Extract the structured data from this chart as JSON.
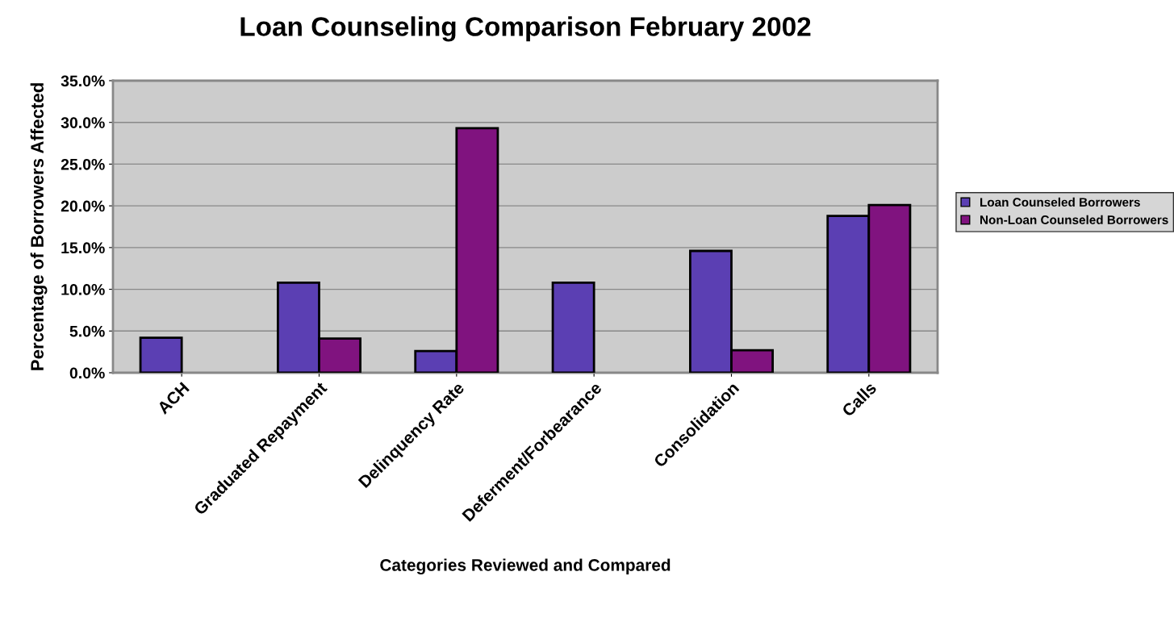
{
  "chart_data": {
    "type": "bar",
    "title": "Loan Counseling Comparison February 2002",
    "xlabel": "Categories Reviewed and Compared",
    "ylabel": "Percentage of Borrowers Affected",
    "categories": [
      "ACH",
      "Graduated Repayment",
      "Delinquency Rate",
      "Deferment/Forbearance",
      "Consolidation",
      "Calls"
    ],
    "series": [
      {
        "name": "Loan Counseled Borrowers",
        "color": "#5b3fb3",
        "values": [
          4.2,
          10.8,
          2.6,
          10.8,
          14.6,
          18.8
        ]
      },
      {
        "name": "Non-Loan Counseled Borrowers",
        "color": "#80137f",
        "values": [
          null,
          4.1,
          29.3,
          null,
          2.7,
          20.1
        ]
      }
    ],
    "ylim": [
      0,
      35
    ],
    "yticks": [
      {
        "value": 0,
        "label": "0.0%"
      },
      {
        "value": 5,
        "label": "5.0%"
      },
      {
        "value": 10,
        "label": "10.0%"
      },
      {
        "value": 15,
        "label": "15.0%"
      },
      {
        "value": 20,
        "label": "20.0%"
      },
      {
        "value": 25,
        "label": "25.0%"
      },
      {
        "value": 30,
        "label": "30.0%"
      },
      {
        "value": 35,
        "label": "35.0%"
      }
    ],
    "grid": "y",
    "legend": "right"
  }
}
